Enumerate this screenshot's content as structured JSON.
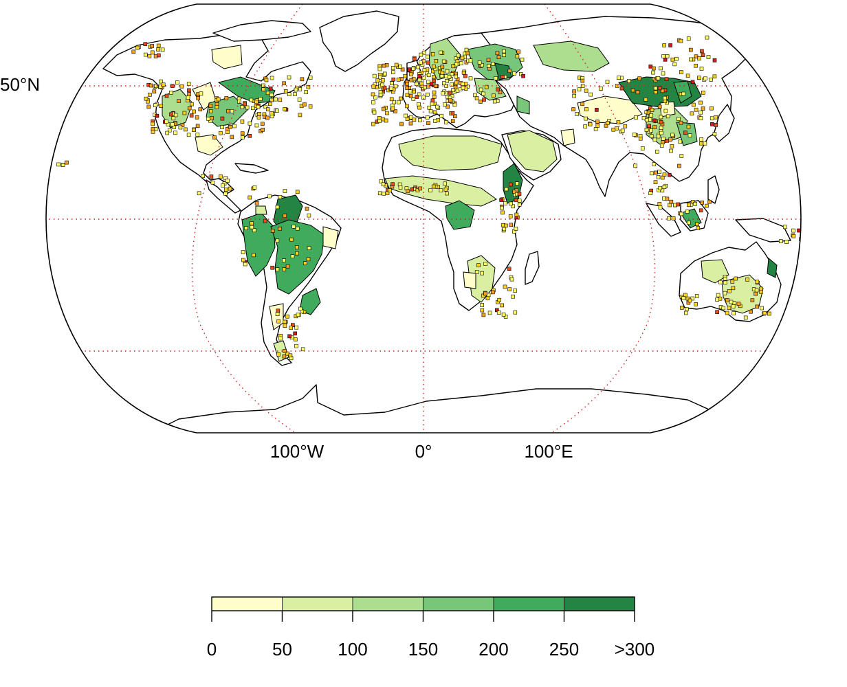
{
  "map": {
    "projection": "robinson",
    "graticule": {
      "lat_label": "50°N",
      "lon_labels": [
        "100°W",
        "0°",
        "100°E"
      ],
      "color": "#d21e1e",
      "style": "dotted"
    },
    "land_outline_color": "#000000",
    "ocean_color": "#ffffff",
    "point_marker_colors": [
      "#ffff66",
      "#ffd21e",
      "#f5a01e",
      "#e6501e",
      "#cc1e1e"
    ]
  },
  "legend": {
    "tick_labels": [
      "0",
      "50",
      "100",
      "150",
      "200",
      "250",
      ">300"
    ],
    "bins": [
      {
        "from": 0,
        "to": 50,
        "color": "#ffffcc"
      },
      {
        "from": 50,
        "to": 100,
        "color": "#d9f0a3"
      },
      {
        "from": 100,
        "to": 150,
        "color": "#addd8e"
      },
      {
        "from": 150,
        "to": 200,
        "color": "#78c679"
      },
      {
        "from": 200,
        "to": 250,
        "color": "#41ab5d"
      },
      {
        "from": 250,
        "to": 300,
        "color": "#238443"
      }
    ]
  }
}
